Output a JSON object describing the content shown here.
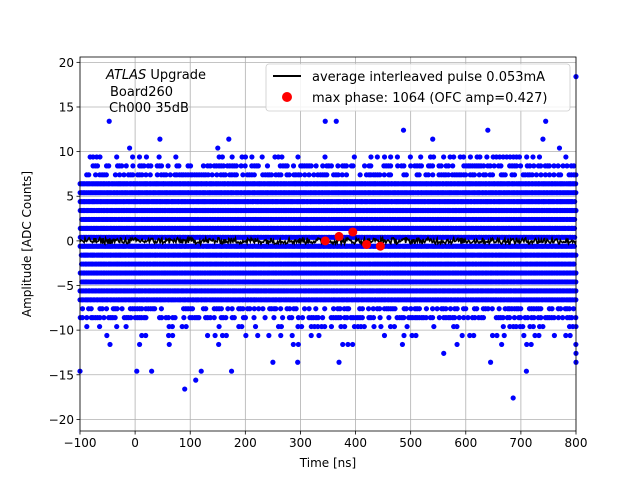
{
  "chart_data": {
    "type": "scatter",
    "annotation": {
      "line1_italic": "ATLAS",
      "line1_rest": " Upgrade",
      "line2": "Board260",
      "line3": "Ch000 35dB"
    },
    "xlabel": "Time [ns]",
    "ylabel": "Amplitude [ADC Counts]",
    "xlim": [
      -100,
      800
    ],
    "ylim": [
      -21.3,
      20.6
    ],
    "xticks": [
      -100,
      0,
      100,
      200,
      300,
      400,
      500,
      600,
      700,
      800
    ],
    "xtick_labels": [
      "−100",
      "0",
      "100",
      "200",
      "300",
      "400",
      "500",
      "600",
      "700",
      "800"
    ],
    "yticks": [
      -20,
      -15,
      -10,
      -5,
      0,
      5,
      10,
      15,
      20
    ],
    "ytick_labels": [
      "−20",
      "−15",
      "−10",
      "−5",
      "0",
      "5",
      "10",
      "15",
      "20"
    ],
    "grid": true,
    "legend_position": "top-right",
    "series": [
      {
        "name": "average interleaved pulse 0.053mA",
        "kind": "line",
        "color": "#000000",
        "x_range": [
          -100,
          800
        ],
        "mean": 0.0,
        "noise_amplitude": 0.35
      },
      {
        "name": "max phase: 1064 (OFC amp=0.427)",
        "kind": "scatter",
        "color": "#ff0000",
        "x": [
          345,
          370,
          395,
          420,
          445
        ],
        "y": [
          0.0,
          0.5,
          1.0,
          -0.4,
          -0.6
        ]
      },
      {
        "name": "",
        "kind": "scatter",
        "color": "#0000ff",
        "x_range": [
          -100,
          800
        ],
        "levels": [
          -11.6,
          -10.6,
          -9.6,
          -8.6,
          -7.6,
          -6.6,
          -5.6,
          -4.6,
          -3.6,
          -2.6,
          -1.6,
          -0.6,
          0.4,
          1.4,
          2.4,
          3.4,
          4.4,
          5.4,
          6.4,
          7.4,
          8.4,
          9.4
        ],
        "outliers": [
          {
            "x": -100,
            "y": -14.6
          },
          {
            "x": -47,
            "y": 13.4
          },
          {
            "x": -10,
            "y": 10.4
          },
          {
            "x": 3,
            "y": -14.6
          },
          {
            "x": 30,
            "y": -14.6
          },
          {
            "x": 45,
            "y": 11.4
          },
          {
            "x": 90,
            "y": -16.6
          },
          {
            "x": 110,
            "y": -15.6
          },
          {
            "x": 120,
            "y": -14.6
          },
          {
            "x": 175,
            "y": -14.6
          },
          {
            "x": 170,
            "y": 11.4
          },
          {
            "x": 250,
            "y": -13.6
          },
          {
            "x": 295,
            "y": -13.6
          },
          {
            "x": 345,
            "y": 13.4
          },
          {
            "x": 365,
            "y": 13.4
          },
          {
            "x": 370,
            "y": -13.6
          },
          {
            "x": 487,
            "y": 12.4
          },
          {
            "x": 540,
            "y": 11.4
          },
          {
            "x": 640,
            "y": 12.4
          },
          {
            "x": 645,
            "y": -13.6
          },
          {
            "x": 686,
            "y": -17.6
          },
          {
            "x": 710,
            "y": -14.6
          },
          {
            "x": 745,
            "y": 13.4
          },
          {
            "x": 740,
            "y": 11.4
          },
          {
            "x": 770,
            "y": 10.4
          },
          {
            "x": 800,
            "y": 18.4
          },
          {
            "x": 800,
            "y": -12.6
          },
          {
            "x": 800,
            "y": -13.6
          },
          {
            "x": 560,
            "y": -12.6
          },
          {
            "x": 150,
            "y": 10.4
          }
        ]
      }
    ]
  }
}
